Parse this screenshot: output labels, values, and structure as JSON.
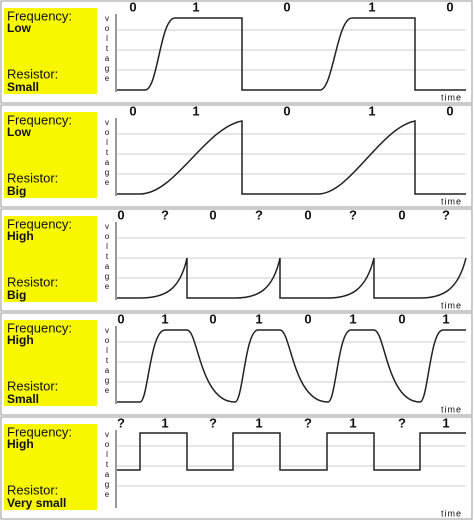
{
  "y_label": "voltage",
  "x_label": "time",
  "panels": [
    {
      "frequency_label": "Frequency:",
      "frequency": "Low",
      "resistor_label": "Resistor:",
      "resistor": "Small",
      "bits": [
        "0",
        "1",
        "0",
        "1",
        "0"
      ]
    },
    {
      "frequency_label": "Frequency:",
      "frequency": "Low",
      "resistor_label": "Resistor:",
      "resistor": "Big",
      "bits": [
        "0",
        "1",
        "0",
        "1",
        "0"
      ]
    },
    {
      "frequency_label": "Frequency:",
      "frequency": "High",
      "resistor_label": "Resistor:",
      "resistor": "Big",
      "bits": [
        "0",
        "?",
        "0",
        "?",
        "0",
        "?",
        "0",
        "?"
      ]
    },
    {
      "frequency_label": "Frequency:",
      "frequency": "High",
      "resistor_label": "Resistor:",
      "resistor": "Small",
      "bits": [
        "0",
        "1",
        "0",
        "1",
        "0",
        "1",
        "0",
        "1"
      ]
    },
    {
      "frequency_label": "Frequency:",
      "frequency": "High",
      "resistor_label": "Resistor:",
      "resistor": "Very small",
      "bits": [
        "?",
        "1",
        "?",
        "1",
        "?",
        "1",
        "?",
        "1"
      ]
    }
  ]
}
